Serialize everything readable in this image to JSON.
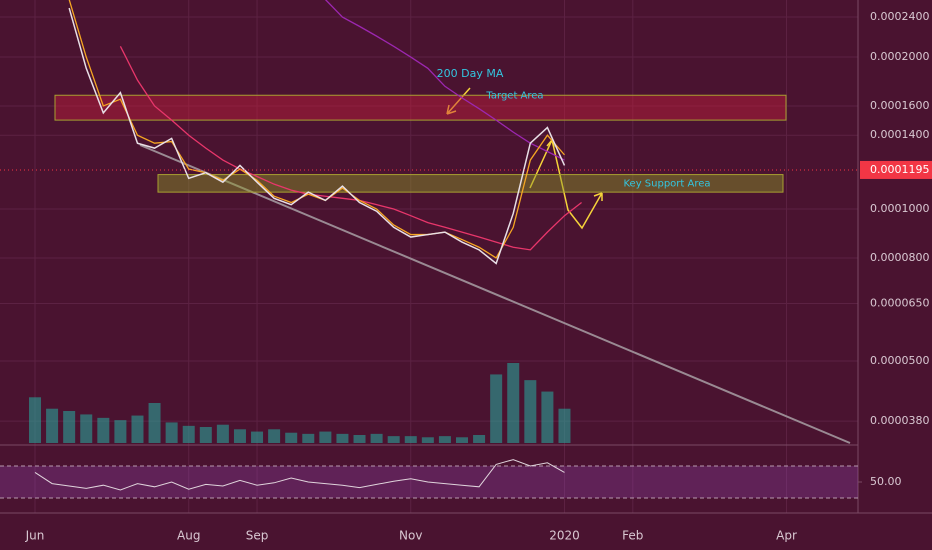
{
  "chart_data": {
    "type": "line",
    "categories": [
      "Jun",
      null,
      null,
      null,
      null,
      null,
      null,
      null,
      null,
      "Aug",
      null,
      null,
      null,
      "Sep",
      null,
      null,
      null,
      null,
      null,
      null,
      null,
      null,
      "Nov",
      null,
      null,
      null,
      null,
      null,
      null,
      null,
      null,
      "2020",
      null,
      null,
      null,
      "Feb",
      null,
      null,
      null,
      null,
      null,
      null,
      null,
      null,
      "Apr",
      null,
      null,
      null
    ],
    "log_scale": true,
    "ylim": [
      3.44e-05,
      0.0002594
    ],
    "yticks": [
      {
        "value": 3.8e-05,
        "label": "0.0000380"
      },
      {
        "value": 5e-05,
        "label": "0.0000500"
      },
      {
        "value": 6.5e-05,
        "label": "0.0000650"
      },
      {
        "value": 8e-05,
        "label": "0.0000800"
      },
      {
        "value": 0.0001,
        "label": "0.0001000"
      },
      {
        "value": 0.00014,
        "label": "0.0001400"
      },
      {
        "value": 0.00016,
        "label": "0.0001600"
      },
      {
        "value": 0.0002,
        "label": "0.0002000"
      },
      {
        "value": 0.00024,
        "label": "0.0002400"
      }
    ],
    "grid": true,
    "current_price": {
      "value": 0.0001195,
      "label": "0.0001195",
      "color": "#f23645"
    },
    "series": [
      {
        "color": "#e8dfe6",
        "values": [
          null,
          null,
          0.00025,
          0.00019,
          0.000155,
          0.00017,
          0.000135,
          0.000132,
          0.000138,
          0.000115,
          0.000118,
          0.000113,
          0.000122,
          0.000113,
          0.000105,
          0.000102,
          0.000108,
          0.000104,
          0.000111,
          0.000103,
          9.9e-05,
          9.2e-05,
          8.8e-05,
          8.9e-05,
          9e-05,
          8.6e-05,
          8.3e-05,
          7.8e-05,
          9.8e-05,
          0.000135,
          0.000145,
          0.000122,
          null,
          null,
          null,
          null,
          null,
          null,
          null,
          null,
          null,
          null,
          null,
          null,
          null,
          null,
          null,
          null
        ]
      },
      {
        "color": "#9c27b0",
        "values": [
          null,
          null,
          null,
          null,
          null,
          null,
          null,
          null,
          null,
          null,
          null,
          null,
          null,
          null,
          null,
          null,
          null,
          0.00026,
          0.00024,
          0.00023,
          0.00022,
          0.00021,
          0.0002,
          0.00019,
          0.000175,
          0.000166,
          0.000158,
          0.00015,
          0.000142,
          0.000135,
          0.00013,
          0.000125,
          null,
          null,
          null,
          null,
          null,
          null,
          null,
          null,
          null,
          null,
          null,
          null,
          null,
          null,
          null,
          null
        ]
      },
      {
        "color": "#e8366b",
        "values": [
          null,
          null,
          null,
          null,
          null,
          0.00021,
          0.00018,
          0.00016,
          0.00015,
          0.00014,
          0.000132,
          0.000125,
          0.00012,
          0.000116,
          0.000112,
          0.000109,
          0.000107,
          0.000106,
          0.000105,
          0.000104,
          0.000102,
          0.0001,
          9.7e-05,
          9.4e-05,
          9.2e-05,
          9e-05,
          8.8e-05,
          8.6e-05,
          8.4e-05,
          8.3e-05,
          9e-05,
          9.7e-05,
          0.000103,
          null,
          null,
          null,
          null,
          null,
          null,
          null,
          null,
          null,
          null,
          null,
          null,
          null,
          null,
          null
        ]
      },
      {
        "color": "#f5a623",
        "values": [
          null,
          null,
          0.00026,
          0.0002,
          0.00016,
          0.000165,
          0.00014,
          0.000135,
          0.000136,
          0.00012,
          0.000118,
          0.000114,
          0.00012,
          0.000114,
          0.000106,
          0.000103,
          0.000107,
          0.000104,
          0.00011,
          0.000104,
          0.0001,
          9.3e-05,
          8.9e-05,
          8.9e-05,
          9e-05,
          8.7e-05,
          8.4e-05,
          8e-05,
          9.2e-05,
          0.000125,
          0.00014,
          0.000128,
          null,
          null,
          null,
          null,
          null,
          null,
          null,
          null,
          null,
          null,
          null,
          null,
          null,
          null,
          null,
          null
        ]
      }
    ],
    "volume": {
      "color": "#2aa198",
      "values": [
        40,
        30,
        28,
        25,
        22,
        20,
        24,
        35,
        18,
        15,
        14,
        16,
        12,
        10,
        12,
        9,
        8,
        10,
        8,
        7,
        8,
        6,
        6,
        5,
        6,
        5,
        7,
        60,
        70,
        55,
        45,
        30,
        null,
        null,
        null,
        null,
        null,
        null,
        null,
        null,
        null,
        null,
        null,
        null,
        null,
        null,
        null,
        null
      ]
    },
    "rsi": {
      "color": "#e0d4dc",
      "axis": "y2",
      "values": [
        62,
        48,
        45,
        42,
        46,
        40,
        48,
        44,
        50,
        41,
        47,
        45,
        52,
        46,
        49,
        55,
        50,
        48,
        46,
        43,
        47,
        51,
        54,
        50,
        48,
        46,
        44,
        72,
        78,
        70,
        74,
        62,
        null,
        null,
        null,
        null,
        null,
        null,
        null,
        null,
        null,
        null,
        null,
        null,
        null,
        null,
        null,
        null
      ]
    },
    "y2lim": [
      15,
      92.5
    ],
    "y2ticks": [
      {
        "value": 50,
        "label": "50.00"
      }
    ],
    "rsi_bands": [
      30,
      70
    ],
    "zones": [
      {
        "label": "Target Area",
        "ylim": [
          0.00015,
          0.000168
        ]
      },
      {
        "label": "Key Support Area",
        "ylim": [
          0.000108,
          0.000117
        ]
      }
    ],
    "annotations": [
      "200 Day MA"
    ]
  }
}
